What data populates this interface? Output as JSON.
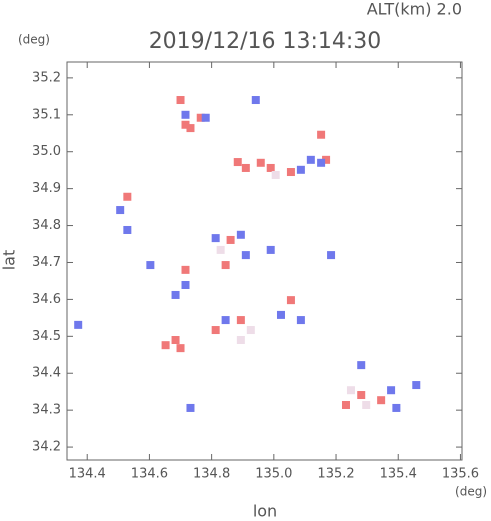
{
  "chart_data": {
    "type": "scatter",
    "title": "2019/12/16 13:14:30",
    "subtitle": "ALT(km) 2.0",
    "y_unit": "(deg)",
    "x_unit": "(deg)",
    "x_label": "lon",
    "y_label": "lat",
    "xlim": [
      134.335,
      135.605
    ],
    "ylim": [
      34.165,
      35.243
    ],
    "xticks": [
      134.4,
      134.6,
      134.8,
      {
        "value": 135,
        "label": "135.0"
      },
      135.2,
      135.4,
      135.6
    ],
    "yticks": [
      34.2,
      34.3,
      34.4,
      34.5,
      34.6,
      34.7,
      34.8,
      34.9,
      {
        "value": 35,
        "label": "35.0"
      },
      35.1,
      35.2
    ],
    "series": [
      {
        "color": "#f07878",
        "x": [
          134.7,
          134.716,
          134.732,
          134.765,
          134.884,
          134.91,
          134.99,
          135.055,
          135.168,
          134.529,
          134.861,
          134.845,
          134.716,
          134.652,
          134.7,
          134.894,
          135.055,
          135.281,
          135.232,
          135.345,
          134.813,
          134.958,
          135.152,
          134.684
        ],
        "y": [
          35.14,
          35.073,
          35.064,
          35.092,
          34.972,
          34.956,
          34.956,
          34.945,
          34.978,
          34.878,
          34.761,
          34.693,
          34.68,
          34.476,
          34.468,
          34.544,
          34.598,
          34.341,
          34.314,
          34.327,
          34.517,
          34.97,
          35.046,
          34.49
        ]
      },
      {
        "color": "#6f78ec",
        "x": [
          134.781,
          134.942,
          134.716,
          135.087,
          135.152,
          135.119,
          134.813,
          134.894,
          134.716,
          134.684,
          134.845,
          135.023,
          135.087,
          134.506,
          134.529,
          134.91,
          135.394,
          135.458,
          135.281,
          135.377,
          134.732,
          134.371,
          135.184,
          134.603,
          134.99
        ],
        "y": [
          35.092,
          35.14,
          35.1,
          34.951,
          34.97,
          34.978,
          34.766,
          34.775,
          34.639,
          34.612,
          34.544,
          34.558,
          34.544,
          34.842,
          34.788,
          34.72,
          34.306,
          34.368,
          34.422,
          34.354,
          34.306,
          34.531,
          34.72,
          34.693,
          34.734
        ]
      },
      {
        "color": "#eedde8",
        "x": [
          134.894,
          135.248,
          134.829,
          135.006,
          135.297,
          134.926
        ],
        "y": [
          34.49,
          34.354,
          34.734,
          34.937,
          34.314,
          34.517
        ]
      }
    ]
  }
}
